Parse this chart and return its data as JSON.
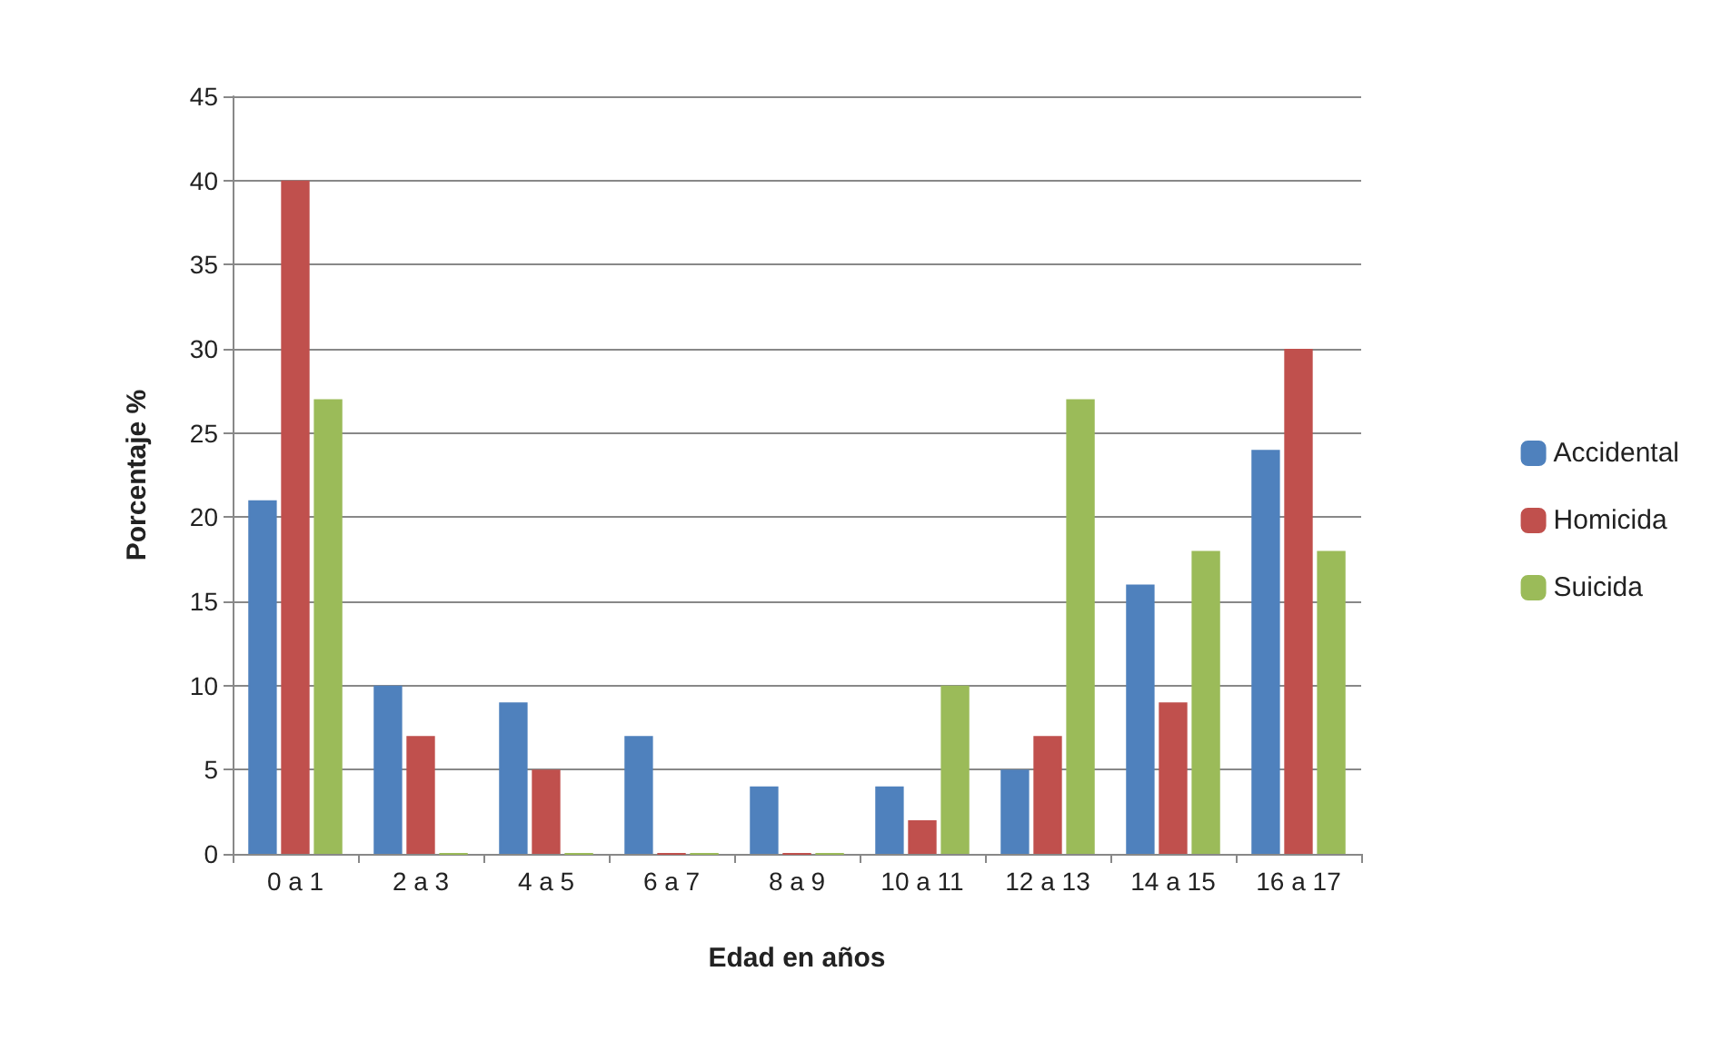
{
  "chart_data": {
    "type": "bar",
    "xlabel": "Edad en años",
    "ylabel": "Porcentaje %",
    "categories": [
      "0 a 1",
      "2 a 3",
      "4 a 5",
      "6 a 7",
      "8 a 9",
      "10 a 11",
      "12 a 13",
      "14 a 15",
      "16 a 17"
    ],
    "series": [
      {
        "name": "Accidental",
        "color": "#4f81bd",
        "values": [
          21,
          10,
          9,
          7,
          4,
          4,
          5,
          16,
          24
        ]
      },
      {
        "name": "Homicida",
        "color": "#c0504d",
        "values": [
          40,
          7,
          5,
          0,
          0,
          2,
          7,
          9,
          30
        ]
      },
      {
        "name": "Suicida",
        "color": "#9bbb59",
        "values": [
          27,
          0,
          0,
          0,
          0,
          10,
          27,
          18,
          18
        ]
      }
    ],
    "ylim": [
      0,
      45
    ],
    "yticks": [
      0,
      5,
      10,
      15,
      20,
      25,
      30,
      35,
      40,
      45
    ],
    "grid": "y",
    "legend": "right"
  }
}
